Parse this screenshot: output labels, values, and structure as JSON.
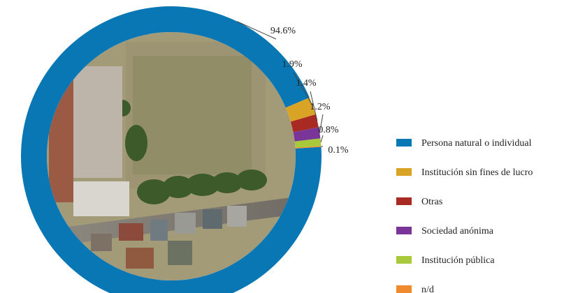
{
  "chart_data": {
    "type": "pie",
    "donut": true,
    "categories": [
      "Persona natural o individual",
      "Institución sin fines de lucro",
      "Otras",
      "Sociedad anónima",
      "Institución pública",
      "n/d"
    ],
    "values": [
      94.6,
      1.9,
      1.4,
      1.2,
      0.8,
      0.1
    ],
    "labels": [
      "94.6%",
      "1.9%",
      "1.4%",
      "1.2%",
      "0.8%",
      "0.1%"
    ],
    "colors": [
      "#0a77b5",
      "#d9a425",
      "#a82a22",
      "#7a3598",
      "#a7c93a",
      "#ef8a2e"
    ],
    "legend_position": "right"
  }
}
